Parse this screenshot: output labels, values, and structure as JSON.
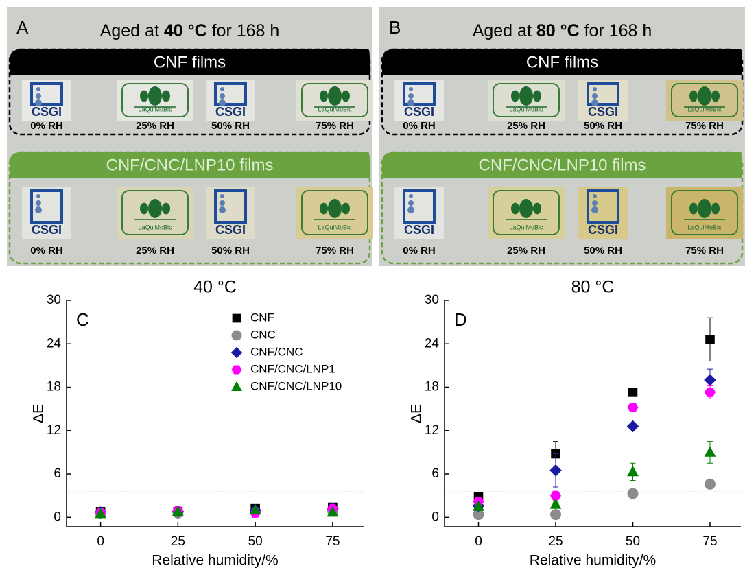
{
  "photo_panels": [
    {
      "label": "A",
      "title_parts": [
        "Aged at ",
        "40 °C",
        " for 168 h"
      ],
      "groups": [
        {
          "name": "CNF films",
          "labels": [
            "0% RH",
            "25% RH",
            "50% RH",
            "75% RH"
          ]
        },
        {
          "name": "CNF/CNC/LNP10 films",
          "labels": [
            "0% RH",
            "25% RH",
            "50% RH",
            "75% RH"
          ]
        }
      ]
    },
    {
      "label": "B",
      "title_parts": [
        "Aged at ",
        "80 °C",
        " for 168 h"
      ],
      "groups": [
        {
          "name": "CNF films",
          "labels": [
            "0% RH",
            "25% RH",
            "50% RH",
            "75% RH"
          ]
        },
        {
          "name": "CNF/CNC/LNP10 films",
          "labels": [
            "0% RH",
            "25% RH",
            "50% RH",
            "75% RH"
          ]
        }
      ]
    }
  ],
  "logo_texts": {
    "csgi": "CSGI",
    "laquimobic": "LaQuiMoBic"
  },
  "chart_data": [
    {
      "type": "scatter",
      "panel_label": "C",
      "title": "40 °C",
      "xlabel": "Relative humidity/%",
      "ylabel": "ΔE",
      "x": [
        0,
        25,
        50,
        75
      ],
      "xlim": [
        -11,
        85
      ],
      "xticks": [
        0,
        25,
        50,
        75
      ],
      "ylim": [
        -1.3,
        30
      ],
      "yticks": [
        0,
        6,
        12,
        18,
        24,
        30
      ],
      "reference_line": 3.5,
      "legend": "upper right",
      "series": [
        {
          "name": "CNF",
          "color": "#000000",
          "marker": "square",
          "values": [
            0.8,
            0.8,
            1.2,
            1.4
          ]
        },
        {
          "name": "CNC",
          "color": "#8c8c8c",
          "marker": "circle",
          "values": [
            0.6,
            0.6,
            0.8,
            0.9
          ]
        },
        {
          "name": "CNF/CNC",
          "color": "#1a1aa6",
          "marker": "diamond",
          "values": [
            0.7,
            0.8,
            1.0,
            1.2
          ]
        },
        {
          "name": "CNF/CNC/LNP1",
          "color": "#ff00ff",
          "marker": "hexagon",
          "values": [
            0.6,
            0.9,
            0.6,
            1.2
          ]
        },
        {
          "name": "CNF/CNC/LNP10",
          "color": "#008000",
          "marker": "triangle",
          "values": [
            0.5,
            0.8,
            1.0,
            0.7
          ]
        }
      ]
    },
    {
      "type": "scatter",
      "panel_label": "D",
      "title": "80 °C",
      "xlabel": "Relative humidity/%",
      "ylabel": "ΔE",
      "x": [
        0,
        25,
        50,
        75
      ],
      "xlim": [
        -11,
        85
      ],
      "xticks": [
        0,
        25,
        50,
        75
      ],
      "ylim": [
        -1.3,
        30
      ],
      "yticks": [
        0,
        6,
        12,
        18,
        24,
        30
      ],
      "reference_line": 3.5,
      "series": [
        {
          "name": "CNF",
          "color": "#000000",
          "marker": "square",
          "values": [
            2.8,
            8.8,
            17.3,
            24.6
          ],
          "errors": [
            0.3,
            1.7,
            0.3,
            3.0
          ]
        },
        {
          "name": "CNC",
          "color": "#8c8c8c",
          "marker": "circle",
          "values": [
            0.4,
            0.4,
            3.3,
            4.6
          ],
          "errors": [
            0.2,
            0.2,
            0.6,
            0.3
          ]
        },
        {
          "name": "CNF/CNC",
          "color": "#1a1aa6",
          "marker": "diamond",
          "values": [
            1.6,
            6.5,
            12.6,
            19.0
          ],
          "errors": [
            0.3,
            2.3,
            0.3,
            1.5
          ]
        },
        {
          "name": "CNF/CNC/LNP1",
          "color": "#ff00ff",
          "marker": "hexagon",
          "values": [
            2.2,
            3.0,
            15.2,
            17.3
          ],
          "errors": [
            0.3,
            0.5,
            0.4,
            0.9
          ]
        },
        {
          "name": "CNF/CNC/LNP10",
          "color": "#008000",
          "marker": "triangle",
          "values": [
            1.5,
            1.8,
            6.3,
            9.0
          ],
          "errors": [
            0.3,
            0.3,
            1.2,
            1.5
          ]
        }
      ]
    }
  ]
}
